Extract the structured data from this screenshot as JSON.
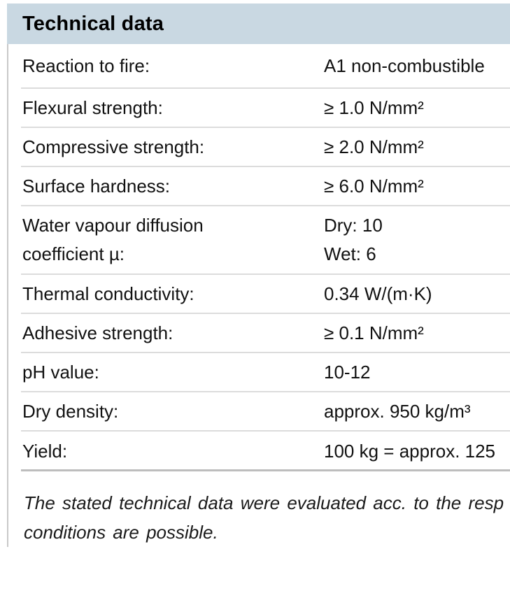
{
  "header": {
    "title": "Technical data"
  },
  "table": {
    "rows": [
      {
        "label": "Reaction to fire:",
        "value": "A1 non-combustible"
      },
      {
        "label": "Flexural strength:",
        "value": "≥ 1.0 N/mm²"
      },
      {
        "label": "Compressive strength:",
        "value": "≥ 2.0 N/mm²"
      },
      {
        "label": "Surface hardness:",
        "value": "≥ 6.0 N/mm²"
      },
      {
        "label_line1": "Water vapour diffusion",
        "label_line2": "coefficient µ:",
        "value_line1": "Dry: 10",
        "value_line2": "Wet: 6"
      },
      {
        "label": "Thermal conductivity:",
        "value": "0.34 W/(m·K)"
      },
      {
        "label": "Adhesive strength:",
        "value": "≥ 0.1 N/mm²"
      },
      {
        "label": "pH value:",
        "value": "10-12"
      },
      {
        "label": "Dry density:",
        "value": "approx. 950 kg/m³"
      },
      {
        "label": "Yield:",
        "value": "100 kg = approx. 125"
      }
    ]
  },
  "footnote": {
    "line1": "The stated technical data were evaluated acc. to the resp",
    "line2": "conditions are possible."
  },
  "colors": {
    "header_band": "#c9d8e2",
    "divider": "#dcdcdc",
    "divider_strong": "#bdbdbd",
    "left_border": "#c9c9c9",
    "text": "#111111"
  }
}
